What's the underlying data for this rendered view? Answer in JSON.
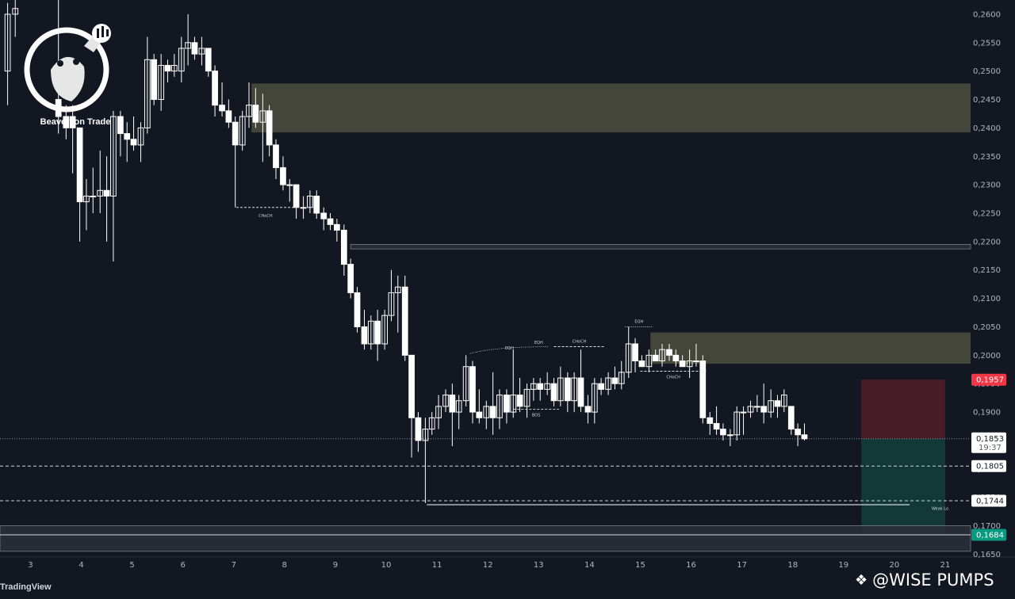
{
  "brand": {
    "logo_text": "Beaverson Trade",
    "platform": "TradingView",
    "watermark": "@WISE PUMPS",
    "watermark_icon": "binance-diamond-icon"
  },
  "colors": {
    "background": "#131722",
    "candle_body": "#ffffff",
    "candle_wick": "#ffffff",
    "supply_zone": "#4d4f3d",
    "stop_zone": "#4a1e29",
    "target_zone": "#123b3a",
    "price_tag": "#ffffff",
    "stop_tag": "#f23645",
    "target_tag": "#089981"
  },
  "chart_data": {
    "type": "candlestick",
    "y_axis_position": "right",
    "ylim": [
      0.1645,
      0.2625
    ],
    "y_ticks": [
      "0,2600",
      "0,2550",
      "0,2500",
      "0,2450",
      "0,2400",
      "0,2350",
      "0,2300",
      "0,2250",
      "0,2200",
      "0,2150",
      "0,2100",
      "0,2050",
      "0,2000",
      "0,1950",
      "0,1900",
      "0,1850",
      "0,1800",
      "0,1750",
      "0,1700",
      "0,1650"
    ],
    "y_tick_values": [
      0.26,
      0.255,
      0.25,
      0.245,
      0.24,
      0.235,
      0.23,
      0.225,
      0.22,
      0.215,
      0.21,
      0.205,
      0.2,
      0.195,
      0.19,
      0.185,
      0.18,
      0.175,
      0.17,
      0.165
    ],
    "xlim": [
      2.4,
      21.5
    ],
    "x_ticks": [
      "3",
      "4",
      "5",
      "6",
      "7",
      "8",
      "9",
      "10",
      "11",
      "12",
      "13",
      "14",
      "15",
      "16",
      "17",
      "18",
      "19",
      "20",
      "21"
    ],
    "x_tick_values": [
      3,
      4,
      5,
      6,
      7,
      8,
      9,
      10,
      11,
      12,
      13,
      14,
      15,
      16,
      17,
      18,
      19,
      20,
      21
    ],
    "candles": [
      {
        "t": 2.55,
        "o": 0.25,
        "h": 0.262,
        "l": 0.244,
        "c": 0.26
      },
      {
        "t": 2.7,
        "o": 0.26,
        "h": 0.2625,
        "l": 0.256,
        "c": 0.261
      },
      {
        "t": 3.55,
        "o": 0.245,
        "h": 0.2625,
        "l": 0.239,
        "c": 0.242
      },
      {
        "t": 3.7,
        "o": 0.242,
        "h": 0.244,
        "l": 0.238,
        "c": 0.24
      },
      {
        "t": 3.83,
        "o": 0.242,
        "h": 0.244,
        "l": 0.232,
        "c": 0.24
      },
      {
        "t": 3.97,
        "o": 0.24,
        "h": 0.24,
        "l": 0.22,
        "c": 0.227
      },
      {
        "t": 4.1,
        "o": 0.227,
        "h": 0.231,
        "l": 0.222,
        "c": 0.228
      },
      {
        "t": 4.23,
        "o": 0.228,
        "h": 0.233,
        "l": 0.225,
        "c": 0.228
      },
      {
        "t": 4.37,
        "o": 0.228,
        "h": 0.236,
        "l": 0.225,
        "c": 0.229
      },
      {
        "t": 4.5,
        "o": 0.229,
        "h": 0.235,
        "l": 0.22,
        "c": 0.228
      },
      {
        "t": 4.63,
        "o": 0.228,
        "h": 0.243,
        "l": 0.2165,
        "c": 0.242
      },
      {
        "t": 4.77,
        "o": 0.242,
        "h": 0.243,
        "l": 0.235,
        "c": 0.239
      },
      {
        "t": 4.9,
        "o": 0.239,
        "h": 0.241,
        "l": 0.234,
        "c": 0.238
      },
      {
        "t": 5.03,
        "o": 0.238,
        "h": 0.242,
        "l": 0.236,
        "c": 0.237
      },
      {
        "t": 5.17,
        "o": 0.237,
        "h": 0.241,
        "l": 0.234,
        "c": 0.24
      },
      {
        "t": 5.3,
        "o": 0.24,
        "h": 0.256,
        "l": 0.239,
        "c": 0.252
      },
      {
        "t": 5.43,
        "o": 0.252,
        "h": 0.253,
        "l": 0.244,
        "c": 0.245
      },
      {
        "t": 5.57,
        "o": 0.245,
        "h": 0.253,
        "l": 0.243,
        "c": 0.251
      },
      {
        "t": 5.7,
        "o": 0.251,
        "h": 0.252,
        "l": 0.248,
        "c": 0.25
      },
      {
        "t": 5.83,
        "o": 0.25,
        "h": 0.253,
        "l": 0.249,
        "c": 0.251
      },
      {
        "t": 5.97,
        "o": 0.25,
        "h": 0.256,
        "l": 0.248,
        "c": 0.254
      },
      {
        "t": 6.1,
        "o": 0.254,
        "h": 0.26,
        "l": 0.251,
        "c": 0.255
      },
      {
        "t": 6.23,
        "o": 0.255,
        "h": 0.256,
        "l": 0.252,
        "c": 0.253
      },
      {
        "t": 6.37,
        "o": 0.253,
        "h": 0.256,
        "l": 0.251,
        "c": 0.254
      },
      {
        "t": 6.5,
        "o": 0.254,
        "h": 0.254,
        "l": 0.249,
        "c": 0.25
      },
      {
        "t": 6.63,
        "o": 0.25,
        "h": 0.251,
        "l": 0.242,
        "c": 0.244
      },
      {
        "t": 6.77,
        "o": 0.244,
        "h": 0.248,
        "l": 0.242,
        "c": 0.243
      },
      {
        "t": 6.9,
        "o": 0.243,
        "h": 0.245,
        "l": 0.24,
        "c": 0.241
      },
      {
        "t": 7.03,
        "o": 0.241,
        "h": 0.242,
        "l": 0.226,
        "c": 0.237
      },
      {
        "t": 7.17,
        "o": 0.237,
        "h": 0.243,
        "l": 0.236,
        "c": 0.242
      },
      {
        "t": 7.3,
        "o": 0.242,
        "h": 0.248,
        "l": 0.24,
        "c": 0.244
      },
      {
        "t": 7.43,
        "o": 0.244,
        "h": 0.247,
        "l": 0.24,
        "c": 0.241
      },
      {
        "t": 7.57,
        "o": 0.241,
        "h": 0.246,
        "l": 0.234,
        "c": 0.243
      },
      {
        "t": 7.7,
        "o": 0.243,
        "h": 0.244,
        "l": 0.235,
        "c": 0.237
      },
      {
        "t": 7.83,
        "o": 0.237,
        "h": 0.238,
        "l": 0.231,
        "c": 0.233
      },
      {
        "t": 7.97,
        "o": 0.233,
        "h": 0.235,
        "l": 0.229,
        "c": 0.23
      },
      {
        "t": 8.1,
        "o": 0.23,
        "h": 0.231,
        "l": 0.227,
        "c": 0.23
      },
      {
        "t": 8.23,
        "o": 0.23,
        "h": 0.23,
        "l": 0.224,
        "c": 0.226
      },
      {
        "t": 8.37,
        "o": 0.226,
        "h": 0.228,
        "l": 0.224,
        "c": 0.226
      },
      {
        "t": 8.5,
        "o": 0.226,
        "h": 0.229,
        "l": 0.225,
        "c": 0.228
      },
      {
        "t": 8.63,
        "o": 0.228,
        "h": 0.229,
        "l": 0.224,
        "c": 0.225
      },
      {
        "t": 8.77,
        "o": 0.225,
        "h": 0.226,
        "l": 0.222,
        "c": 0.224
      },
      {
        "t": 8.9,
        "o": 0.224,
        "h": 0.225,
        "l": 0.222,
        "c": 0.223
      },
      {
        "t": 9.03,
        "o": 0.223,
        "h": 0.224,
        "l": 0.22,
        "c": 0.222
      },
      {
        "t": 9.17,
        "o": 0.222,
        "h": 0.223,
        "l": 0.214,
        "c": 0.216
      },
      {
        "t": 9.3,
        "o": 0.216,
        "h": 0.217,
        "l": 0.21,
        "c": 0.211
      },
      {
        "t": 9.43,
        "o": 0.211,
        "h": 0.212,
        "l": 0.204,
        "c": 0.205
      },
      {
        "t": 9.57,
        "o": 0.205,
        "h": 0.208,
        "l": 0.201,
        "c": 0.202
      },
      {
        "t": 9.7,
        "o": 0.202,
        "h": 0.207,
        "l": 0.201,
        "c": 0.206
      },
      {
        "t": 9.83,
        "o": 0.206,
        "h": 0.208,
        "l": 0.199,
        "c": 0.202
      },
      {
        "t": 9.97,
        "o": 0.202,
        "h": 0.208,
        "l": 0.201,
        "c": 0.207
      },
      {
        "t": 10.1,
        "o": 0.207,
        "h": 0.215,
        "l": 0.206,
        "c": 0.211
      },
      {
        "t": 10.23,
        "o": 0.211,
        "h": 0.214,
        "l": 0.204,
        "c": 0.212
      },
      {
        "t": 10.37,
        "o": 0.212,
        "h": 0.214,
        "l": 0.199,
        "c": 0.2
      },
      {
        "t": 10.5,
        "o": 0.2,
        "h": 0.2,
        "l": 0.182,
        "c": 0.189
      },
      {
        "t": 10.63,
        "o": 0.189,
        "h": 0.19,
        "l": 0.183,
        "c": 0.185
      },
      {
        "t": 10.77,
        "o": 0.185,
        "h": 0.189,
        "l": 0.174,
        "c": 0.187
      },
      {
        "t": 10.9,
        "o": 0.187,
        "h": 0.19,
        "l": 0.186,
        "c": 0.189
      },
      {
        "t": 11.03,
        "o": 0.189,
        "h": 0.193,
        "l": 0.187,
        "c": 0.191
      },
      {
        "t": 11.17,
        "o": 0.191,
        "h": 0.194,
        "l": 0.19,
        "c": 0.193
      },
      {
        "t": 11.3,
        "o": 0.193,
        "h": 0.195,
        "l": 0.184,
        "c": 0.19
      },
      {
        "t": 11.43,
        "o": 0.19,
        "h": 0.193,
        "l": 0.187,
        "c": 0.192
      },
      {
        "t": 11.57,
        "o": 0.192,
        "h": 0.2,
        "l": 0.191,
        "c": 0.198
      },
      {
        "t": 11.7,
        "o": 0.198,
        "h": 0.199,
        "l": 0.188,
        "c": 0.19
      },
      {
        "t": 11.83,
        "o": 0.19,
        "h": 0.194,
        "l": 0.188,
        "c": 0.189
      },
      {
        "t": 11.97,
        "o": 0.189,
        "h": 0.192,
        "l": 0.187,
        "c": 0.191
      },
      {
        "t": 12.1,
        "o": 0.191,
        "h": 0.197,
        "l": 0.186,
        "c": 0.189
      },
      {
        "t": 12.23,
        "o": 0.189,
        "h": 0.194,
        "l": 0.187,
        "c": 0.193
      },
      {
        "t": 12.37,
        "o": 0.193,
        "h": 0.194,
        "l": 0.188,
        "c": 0.19
      },
      {
        "t": 12.5,
        "o": 0.19,
        "h": 0.201,
        "l": 0.189,
        "c": 0.193
      },
      {
        "t": 12.63,
        "o": 0.193,
        "h": 0.196,
        "l": 0.19,
        "c": 0.191
      },
      {
        "t": 12.77,
        "o": 0.191,
        "h": 0.195,
        "l": 0.189,
        "c": 0.194
      },
      {
        "t": 12.9,
        "o": 0.194,
        "h": 0.196,
        "l": 0.192,
        "c": 0.195
      },
      {
        "t": 13.03,
        "o": 0.195,
        "h": 0.196,
        "l": 0.192,
        "c": 0.194
      },
      {
        "t": 13.17,
        "o": 0.194,
        "h": 0.197,
        "l": 0.193,
        "c": 0.195
      },
      {
        "t": 13.3,
        "o": 0.195,
        "h": 0.196,
        "l": 0.191,
        "c": 0.192
      },
      {
        "t": 13.43,
        "o": 0.192,
        "h": 0.198,
        "l": 0.191,
        "c": 0.196
      },
      {
        "t": 13.57,
        "o": 0.196,
        "h": 0.197,
        "l": 0.19,
        "c": 0.192
      },
      {
        "t": 13.7,
        "o": 0.192,
        "h": 0.197,
        "l": 0.19,
        "c": 0.196
      },
      {
        "t": 13.83,
        "o": 0.196,
        "h": 0.201,
        "l": 0.19,
        "c": 0.191
      },
      {
        "t": 13.97,
        "o": 0.191,
        "h": 0.193,
        "l": 0.188,
        "c": 0.19
      },
      {
        "t": 14.1,
        "o": 0.19,
        "h": 0.196,
        "l": 0.188,
        "c": 0.195
      },
      {
        "t": 14.23,
        "o": 0.195,
        "h": 0.196,
        "l": 0.193,
        "c": 0.194
      },
      {
        "t": 14.37,
        "o": 0.194,
        "h": 0.197,
        "l": 0.193,
        "c": 0.196
      },
      {
        "t": 14.5,
        "o": 0.196,
        "h": 0.198,
        "l": 0.194,
        "c": 0.195
      },
      {
        "t": 14.63,
        "o": 0.195,
        "h": 0.199,
        "l": 0.194,
        "c": 0.197
      },
      {
        "t": 14.77,
        "o": 0.197,
        "h": 0.205,
        "l": 0.196,
        "c": 0.202
      },
      {
        "t": 14.9,
        "o": 0.202,
        "h": 0.203,
        "l": 0.197,
        "c": 0.199
      },
      {
        "t": 15.03,
        "o": 0.199,
        "h": 0.2,
        "l": 0.198,
        "c": 0.198
      },
      {
        "t": 15.17,
        "o": 0.198,
        "h": 0.201,
        "l": 0.197,
        "c": 0.2
      },
      {
        "t": 15.3,
        "o": 0.2,
        "h": 0.201,
        "l": 0.199,
        "c": 0.199
      },
      {
        "t": 15.43,
        "o": 0.199,
        "h": 0.202,
        "l": 0.198,
        "c": 0.201
      },
      {
        "t": 15.57,
        "o": 0.201,
        "h": 0.202,
        "l": 0.199,
        "c": 0.2
      },
      {
        "t": 15.7,
        "o": 0.2,
        "h": 0.201,
        "l": 0.198,
        "c": 0.199
      },
      {
        "t": 15.83,
        "o": 0.199,
        "h": 0.2,
        "l": 0.198,
        "c": 0.198
      },
      {
        "t": 15.97,
        "o": 0.198,
        "h": 0.201,
        "l": 0.196,
        "c": 0.199
      },
      {
        "t": 16.1,
        "o": 0.199,
        "h": 0.202,
        "l": 0.198,
        "c": 0.199
      },
      {
        "t": 16.23,
        "o": 0.199,
        "h": 0.2,
        "l": 0.188,
        "c": 0.189
      },
      {
        "t": 16.37,
        "o": 0.189,
        "h": 0.19,
        "l": 0.186,
        "c": 0.188
      },
      {
        "t": 16.5,
        "o": 0.188,
        "h": 0.191,
        "l": 0.186,
        "c": 0.187
      },
      {
        "t": 16.63,
        "o": 0.187,
        "h": 0.188,
        "l": 0.185,
        "c": 0.186
      },
      {
        "t": 16.77,
        "o": 0.186,
        "h": 0.187,
        "l": 0.184,
        "c": 0.186
      },
      {
        "t": 16.9,
        "o": 0.186,
        "h": 0.191,
        "l": 0.185,
        "c": 0.19
      },
      {
        "t": 17.03,
        "o": 0.19,
        "h": 0.191,
        "l": 0.186,
        "c": 0.19
      },
      {
        "t": 17.17,
        "o": 0.19,
        "h": 0.192,
        "l": 0.189,
        "c": 0.191
      },
      {
        "t": 17.3,
        "o": 0.191,
        "h": 0.193,
        "l": 0.19,
        "c": 0.191
      },
      {
        "t": 17.43,
        "o": 0.191,
        "h": 0.195,
        "l": 0.188,
        "c": 0.19
      },
      {
        "t": 17.57,
        "o": 0.19,
        "h": 0.194,
        "l": 0.189,
        "c": 0.192
      },
      {
        "t": 17.7,
        "o": 0.192,
        "h": 0.193,
        "l": 0.189,
        "c": 0.191
      },
      {
        "t": 17.83,
        "o": 0.191,
        "h": 0.194,
        "l": 0.19,
        "c": 0.193
      },
      {
        "t": 17.97,
        "o": 0.191,
        "h": 0.191,
        "l": 0.186,
        "c": 0.187
      },
      {
        "t": 18.1,
        "o": 0.187,
        "h": 0.188,
        "l": 0.184,
        "c": 0.186
      },
      {
        "t": 18.23,
        "o": 0.186,
        "h": 0.188,
        "l": 0.185,
        "c": 0.1853
      }
    ],
    "zones": [
      {
        "name": "supply-zone-upper",
        "x0": 7.35,
        "x1": 21.5,
        "y0": 0.2392,
        "y1": 0.2478,
        "kind": "supply"
      },
      {
        "name": "supply-zone-lower",
        "x0": 15.2,
        "x1": 21.5,
        "y0": 0.1985,
        "y1": 0.204,
        "kind": "supply"
      },
      {
        "name": "short-stop-zone",
        "x0": 19.35,
        "x1": 21.0,
        "y0": 0.1853,
        "y1": 0.1957,
        "kind": "stop"
      },
      {
        "name": "short-target-zone",
        "x0": 19.35,
        "x1": 21.0,
        "y0": 0.1684,
        "y1": 0.1853,
        "kind": "target"
      },
      {
        "name": "level-0.2190",
        "x0": 9.3,
        "x1": 21.5,
        "y0": 0.2187,
        "y1": 0.2195,
        "kind": "level"
      },
      {
        "name": "level-0.1684",
        "x0": 2.4,
        "x1": 21.5,
        "y0": 0.1655,
        "y1": 0.17,
        "kind": "level"
      }
    ],
    "levels": [
      {
        "name": "current-price-line",
        "y": 0.1853,
        "style": "dotted"
      },
      {
        "name": "level-0.1805",
        "y": 0.1805,
        "style": "dashed"
      },
      {
        "name": "level-0.1744",
        "y": 0.1744,
        "style": "dashed"
      },
      {
        "name": "level-0.1684-line",
        "y": 0.1684,
        "style": "solid"
      }
    ],
    "annotations": [
      {
        "label": "CHoCH",
        "x": 7.05,
        "x_end": 8.2,
        "y": 0.226,
        "line": "dashed"
      },
      {
        "label": "EQH",
        "x": 11.65,
        "x_end": 13.2,
        "y": 0.2003,
        "line": "dotted-curve",
        "x_mid": 12.15,
        "y_end": 0.2015
      },
      {
        "label": "EQH",
        "x": 13.0,
        "y": 0.2013,
        "line": "none"
      },
      {
        "label": "CHoCH",
        "x": 13.3,
        "x_end": 14.3,
        "y": 0.2015,
        "line": "dashed"
      },
      {
        "label": "BOS",
        "x": 12.5,
        "x_end": 13.4,
        "y": 0.1905,
        "line": "dashed"
      },
      {
        "label": "EQH",
        "x": 14.7,
        "x_end": 15.25,
        "y": 0.205,
        "line": "dotted"
      },
      {
        "label": "CHoCH",
        "x": 15.0,
        "x_end": 16.3,
        "y": 0.1972,
        "line": "dashed"
      },
      {
        "label": "Weak Lo",
        "x": 20.9,
        "y": 0.1721,
        "line": "none"
      }
    ],
    "weak_low": {
      "x0": 10.8,
      "x1": 20.3,
      "y": 0.1737
    },
    "price_tags": [
      {
        "name": "stop-price-tag",
        "label": "0,1957",
        "y": 0.1957,
        "kind": "stop"
      },
      {
        "name": "current-price-tag",
        "label": "0,1853",
        "sub": "19:37",
        "y": 0.1853,
        "kind": "current"
      },
      {
        "name": "level-0.1805-tag",
        "label": "0,1805",
        "y": 0.1805,
        "kind": "level"
      },
      {
        "name": "level-0.1744-tag",
        "label": "0,1744",
        "y": 0.1744,
        "kind": "level"
      },
      {
        "name": "target-price-tag",
        "label": "0,1684",
        "y": 0.1684,
        "kind": "target"
      }
    ]
  }
}
